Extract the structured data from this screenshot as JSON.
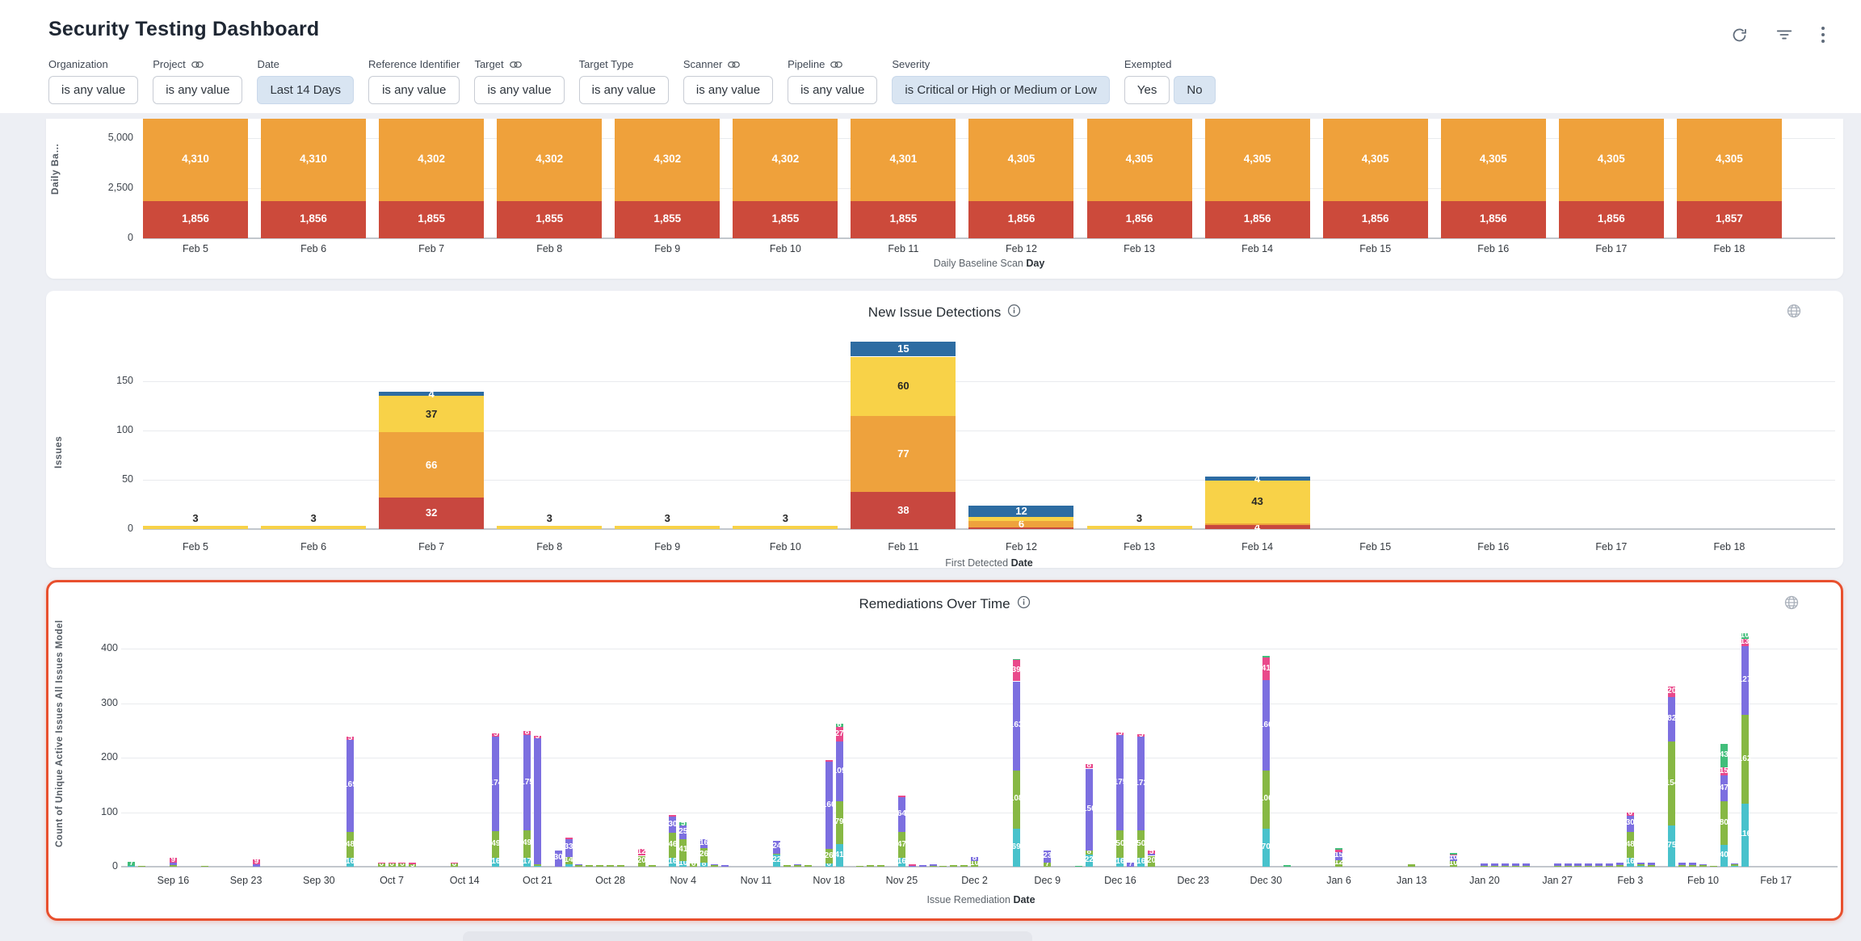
{
  "header": {
    "title": "Security Testing Dashboard"
  },
  "filters": {
    "items": [
      {
        "label": "Organization",
        "value": "is any value",
        "linked": false,
        "active": false
      },
      {
        "label": "Project",
        "value": "is any value",
        "linked": true,
        "active": false
      },
      {
        "label": "Date",
        "value": "Last 14 Days",
        "linked": false,
        "active": true
      },
      {
        "label": "Reference Identifier",
        "value": "is any value",
        "linked": false,
        "active": false
      },
      {
        "label": "Target",
        "value": "is any value",
        "linked": true,
        "active": false
      },
      {
        "label": "Target Type",
        "value": "is any value",
        "linked": false,
        "active": false
      },
      {
        "label": "Scanner",
        "value": "is any value",
        "linked": true,
        "active": false
      },
      {
        "label": "Pipeline",
        "value": "is any value",
        "linked": true,
        "active": false
      },
      {
        "label": "Severity",
        "value": "is Critical or High or Medium or Low",
        "linked": false,
        "active": true
      }
    ],
    "exempted": {
      "label": "Exempted",
      "options": [
        {
          "label": "Yes",
          "active": false
        },
        {
          "label": "No",
          "active": true
        }
      ]
    }
  },
  "chart_data": [
    {
      "id": "daily_baseline_scan",
      "type": "bar",
      "stacked": true,
      "categories": [
        "Feb 5",
        "Feb 6",
        "Feb 7",
        "Feb 8",
        "Feb 9",
        "Feb 10",
        "Feb 11",
        "Feb 12",
        "Feb 13",
        "Feb 14",
        "Feb 15",
        "Feb 16",
        "Feb 17",
        "Feb 18"
      ],
      "series": [
        {
          "name": "critical-high-bottom",
          "color": "#cc4a3b",
          "values": [
            1856,
            1856,
            1855,
            1855,
            1855,
            1855,
            1855,
            1856,
            1856,
            1856,
            1856,
            1856,
            1856,
            1857
          ]
        },
        {
          "name": "medium-low-top",
          "color": "#efa13b",
          "values": [
            4310,
            4310,
            4302,
            4302,
            4302,
            4302,
            4301,
            4305,
            4305,
            4305,
            4305,
            4305,
            4305,
            4305
          ]
        }
      ],
      "ylabel": "Daily Ba…",
      "xlabel_prefix": "Daily Baseline Scan",
      "xlabel_bold": "Day",
      "yticks": [
        0,
        2500,
        5000
      ],
      "ylim": [
        0,
        6000
      ],
      "grid": true
    },
    {
      "id": "new_issue_detections",
      "title": "New Issue Detections",
      "type": "bar",
      "stacked": true,
      "categories": [
        "Feb 5",
        "Feb 6",
        "Feb 7",
        "Feb 8",
        "Feb 9",
        "Feb 10",
        "Feb 11",
        "Feb 12",
        "Feb 13",
        "Feb 14",
        "Feb 15",
        "Feb 16",
        "Feb 17",
        "Feb 18"
      ],
      "series": [
        {
          "name": "critical",
          "color": "#c8473f",
          "label_color": "#ffffff",
          "values": [
            0,
            0,
            32,
            0,
            0,
            0,
            38,
            2,
            0,
            4,
            0,
            0,
            0,
            0
          ]
        },
        {
          "name": "high",
          "color": "#eea23d",
          "label_color": "#ffffff",
          "values": [
            0,
            0,
            66,
            0,
            0,
            0,
            77,
            6,
            0,
            2,
            0,
            0,
            0,
            0
          ]
        },
        {
          "name": "medium",
          "color": "#f8d248",
          "label_color": "#262626",
          "values": [
            3,
            3,
            37,
            3,
            3,
            3,
            60,
            4,
            3,
            43,
            0,
            0,
            0,
            0
          ]
        },
        {
          "name": "low",
          "color": "#2d6ca2",
          "label_color": "#ffffff",
          "values": [
            0,
            0,
            4,
            0,
            0,
            0,
            15,
            12,
            0,
            4,
            0,
            0,
            0,
            0
          ]
        }
      ],
      "ylabel": "Issues",
      "xlabel_prefix": "First Detected",
      "xlabel_bold": "Date",
      "yticks": [
        0,
        50,
        100,
        150
      ],
      "ylim": [
        0,
        175
      ],
      "grid": true
    },
    {
      "id": "remediations_over_time",
      "title": "Remediations Over Time",
      "type": "bar",
      "stacked": true,
      "highlighted": true,
      "ylabel": "Count of Unique Active Issues All Issues Model",
      "xlabel_prefix": "Issue Remediation",
      "xlabel_bold": "Date",
      "yticks": [
        0,
        100,
        200,
        300,
        400
      ],
      "ylim": [
        0,
        440
      ],
      "grid": true,
      "week_ticks": [
        "Sep 16",
        "Sep 23",
        "Sep 30",
        "Oct 7",
        "Oct 14",
        "Oct 21",
        "Oct 28",
        "Nov 4",
        "Nov 11",
        "Nov 18",
        "Nov 25",
        "Dec 2",
        "Dec 9",
        "Dec 16",
        "Dec 23",
        "Dec 30",
        "Jan 6",
        "Jan 13",
        "Jan 20",
        "Jan 27",
        "Feb 3",
        "Feb 10",
        "Feb 17"
      ],
      "segment_names": [
        "teal",
        "olive",
        "purple",
        "pink",
        "green"
      ],
      "colors": [
        "#48c2cc",
        "#87b844",
        "#7c6fe0",
        "#e9498b",
        "#41be7a"
      ],
      "bars": [
        {
          "d": 1,
          "v": [
            2,
            0,
            0,
            0,
            7
          ]
        },
        {
          "d": 2,
          "v": [
            0,
            2,
            0,
            0,
            0
          ]
        },
        {
          "d": 5,
          "v": [
            0,
            3,
            4,
            9,
            0
          ]
        },
        {
          "d": 8,
          "v": [
            0,
            2,
            0,
            0,
            0
          ]
        },
        {
          "d": 13,
          "v": [
            0,
            0,
            4,
            9,
            0
          ]
        },
        {
          "d": 22,
          "v": [
            16,
            48,
            169,
            5,
            0
          ]
        },
        {
          "d": 25,
          "v": [
            0,
            6,
            0,
            2,
            0
          ]
        },
        {
          "d": 26,
          "v": [
            0,
            6,
            0,
            2,
            0
          ]
        },
        {
          "d": 27,
          "v": [
            0,
            6,
            0,
            2,
            0
          ]
        },
        {
          "d": 28,
          "v": [
            0,
            5,
            0,
            2,
            0
          ]
        },
        {
          "d": 32,
          "v": [
            0,
            6,
            0,
            2,
            0
          ]
        },
        {
          "d": 36,
          "v": [
            16,
            49,
            174,
            5,
            0
          ]
        },
        {
          "d": 39,
          "v": [
            17,
            49,
            175,
            8,
            0
          ]
        },
        {
          "d": 40,
          "v": [
            2,
            3,
            230,
            5,
            0
          ]
        },
        {
          "d": 42,
          "v": [
            0,
            0,
            30,
            0,
            0
          ]
        },
        {
          "d": 43,
          "v": [
            4,
            14,
            33,
            3,
            0
          ]
        },
        {
          "d": 44,
          "v": [
            0,
            3,
            2,
            0,
            0
          ]
        },
        {
          "d": 45,
          "v": [
            0,
            3,
            0,
            0,
            0
          ]
        },
        {
          "d": 46,
          "v": [
            0,
            3,
            0,
            0,
            0
          ]
        },
        {
          "d": 47,
          "v": [
            0,
            3,
            0,
            0,
            0
          ]
        },
        {
          "d": 48,
          "v": [
            0,
            3,
            0,
            0,
            0
          ]
        },
        {
          "d": 50,
          "v": [
            0,
            20,
            0,
            12,
            0
          ]
        },
        {
          "d": 51,
          "v": [
            0,
            3,
            0,
            0,
            0
          ]
        },
        {
          "d": 53,
          "v": [
            16,
            46,
            30,
            3,
            0
          ]
        },
        {
          "d": 54,
          "v": [
            10,
            41,
            25,
            0,
            5
          ]
        },
        {
          "d": 55,
          "v": [
            0,
            6,
            0,
            0,
            0
          ]
        },
        {
          "d": 56,
          "v": [
            8,
            26,
            16,
            0,
            0
          ]
        },
        {
          "d": 57,
          "v": [
            0,
            3,
            2,
            0,
            0
          ]
        },
        {
          "d": 58,
          "v": [
            0,
            0,
            3,
            0,
            0
          ]
        },
        {
          "d": 63,
          "v": [
            22,
            2,
            24,
            0,
            0
          ]
        },
        {
          "d": 64,
          "v": [
            0,
            3,
            0,
            0,
            0
          ]
        },
        {
          "d": 65,
          "v": [
            0,
            3,
            2,
            0,
            0
          ]
        },
        {
          "d": 66,
          "v": [
            0,
            3,
            0,
            0,
            0
          ]
        },
        {
          "d": 68,
          "v": [
            6,
            26,
            160,
            4,
            0
          ]
        },
        {
          "d": 69,
          "v": [
            41,
            79,
            109,
            27,
            6
          ]
        },
        {
          "d": 71,
          "v": [
            0,
            2,
            0,
            0,
            0
          ]
        },
        {
          "d": 72,
          "v": [
            0,
            3,
            0,
            0,
            0
          ]
        },
        {
          "d": 73,
          "v": [
            0,
            3,
            0,
            0,
            0
          ]
        },
        {
          "d": 75,
          "v": [
            16,
            47,
            64,
            4,
            0
          ]
        },
        {
          "d": 76,
          "v": [
            0,
            0,
            2,
            3,
            0
          ]
        },
        {
          "d": 77,
          "v": [
            0,
            0,
            3,
            0,
            0
          ]
        },
        {
          "d": 78,
          "v": [
            0,
            2,
            2,
            0,
            0
          ]
        },
        {
          "d": 79,
          "v": [
            0,
            2,
            0,
            0,
            0
          ]
        },
        {
          "d": 80,
          "v": [
            0,
            3,
            0,
            0,
            0
          ]
        },
        {
          "d": 81,
          "v": [
            0,
            3,
            0,
            0,
            0
          ]
        },
        {
          "d": 82,
          "v": [
            0,
            10,
            8,
            0,
            0
          ]
        },
        {
          "d": 86,
          "v": [
            69,
            108,
            163,
            39,
            2
          ]
        },
        {
          "d": 89,
          "v": [
            0,
            7,
            23,
            0,
            0
          ]
        },
        {
          "d": 92,
          "v": [
            0,
            0,
            0,
            0,
            2
          ]
        },
        {
          "d": 93,
          "v": [
            22,
            8,
            150,
            8,
            0
          ]
        },
        {
          "d": 96,
          "v": [
            16,
            50,
            175,
            5,
            0
          ]
        },
        {
          "d": 97,
          "v": [
            0,
            0,
            7,
            0,
            0
          ]
        },
        {
          "d": 98,
          "v": [
            16,
            50,
            172,
            5,
            0
          ]
        },
        {
          "d": 99,
          "v": [
            0,
            20,
            4,
            5,
            0
          ]
        },
        {
          "d": 110,
          "v": [
            70,
            106,
            166,
            41,
            4
          ]
        },
        {
          "d": 112,
          "v": [
            0,
            0,
            0,
            0,
            3
          ]
        },
        {
          "d": 117,
          "v": [
            0,
            12,
            15,
            4,
            3
          ]
        },
        {
          "d": 124,
          "v": [
            0,
            4,
            0,
            0,
            0
          ]
        },
        {
          "d": 128,
          "v": [
            0,
            10,
            10,
            2,
            3
          ]
        },
        {
          "d": 131,
          "v": [
            0,
            2,
            4,
            0,
            0
          ]
        },
        {
          "d": 132,
          "v": [
            0,
            2,
            4,
            0,
            0
          ]
        },
        {
          "d": 133,
          "v": [
            0,
            2,
            4,
            0,
            0
          ]
        },
        {
          "d": 134,
          "v": [
            0,
            2,
            4,
            0,
            0
          ]
        },
        {
          "d": 135,
          "v": [
            0,
            2,
            4,
            0,
            0
          ]
        },
        {
          "d": 138,
          "v": [
            0,
            2,
            4,
            0,
            0
          ]
        },
        {
          "d": 139,
          "v": [
            0,
            2,
            4,
            0,
            0
          ]
        },
        {
          "d": 140,
          "v": [
            0,
            2,
            4,
            0,
            0
          ]
        },
        {
          "d": 141,
          "v": [
            0,
            2,
            4,
            0,
            0
          ]
        },
        {
          "d": 142,
          "v": [
            0,
            2,
            4,
            0,
            0
          ]
        },
        {
          "d": 143,
          "v": [
            0,
            2,
            4,
            0,
            0
          ]
        },
        {
          "d": 144,
          "v": [
            0,
            3,
            4,
            0,
            0
          ]
        },
        {
          "d": 145,
          "v": [
            16,
            48,
            30,
            6,
            0
          ]
        },
        {
          "d": 146,
          "v": [
            2,
            3,
            3,
            0,
            0
          ]
        },
        {
          "d": 147,
          "v": [
            0,
            3,
            4,
            0,
            0
          ]
        },
        {
          "d": 149,
          "v": [
            75,
            154,
            82,
            20,
            0
          ]
        },
        {
          "d": 150,
          "v": [
            0,
            3,
            4,
            0,
            0
          ]
        },
        {
          "d": 151,
          "v": [
            0,
            3,
            4,
            0,
            0
          ]
        },
        {
          "d": 152,
          "v": [
            0,
            3,
            2,
            0,
            0
          ]
        },
        {
          "d": 153,
          "v": [
            0,
            2,
            0,
            0,
            0
          ]
        },
        {
          "d": 154,
          "v": [
            40,
            80,
            47,
            15,
            43
          ]
        },
        {
          "d": 155,
          "v": [
            2,
            2,
            2,
            0,
            0
          ]
        },
        {
          "d": 156,
          "v": [
            116,
            162,
            127,
            13,
            10
          ]
        }
      ]
    }
  ]
}
